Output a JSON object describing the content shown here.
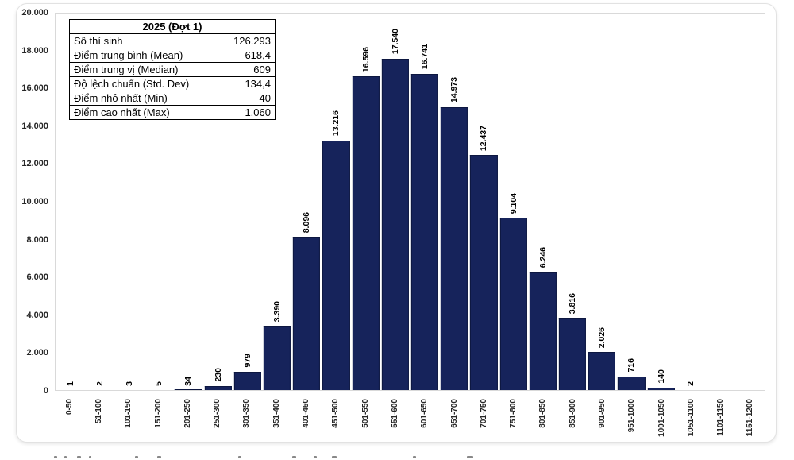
{
  "stats_table": {
    "title": "2025 (Đợt 1)",
    "rows": [
      {
        "label": "Số thí sinh",
        "value": "126.293"
      },
      {
        "label": "Điểm trung bình (Mean)",
        "value": "618,4"
      },
      {
        "label": "Điểm trung vị (Median)",
        "value": "609"
      },
      {
        "label": "Độ lệch chuẩn (Std. Dev)",
        "value": "134,4"
      },
      {
        "label": "Điểm nhỏ nhất (Min)",
        "value": "40"
      },
      {
        "label": "Điểm cao nhất (Max)",
        "value": "1.060"
      }
    ]
  },
  "chart_data": {
    "type": "bar",
    "title": "",
    "xlabel": "",
    "ylabel": "",
    "categories": [
      "0-50",
      "51-100",
      "101-150",
      "151-200",
      "201-250",
      "251-300",
      "301-350",
      "351-400",
      "401-450",
      "451-500",
      "501-550",
      "551-600",
      "601-650",
      "651-700",
      "701-750",
      "751-800",
      "801-850",
      "851-900",
      "901-950",
      "951-1000",
      "1001-1050",
      "1051-1100",
      "1101-1150",
      "1151-1200"
    ],
    "values": [
      1,
      2,
      3,
      5,
      34,
      230,
      979,
      3390,
      8096,
      13216,
      16596,
      17540,
      16741,
      14973,
      12437,
      9104,
      6246,
      3816,
      2026,
      716,
      140,
      2,
      0,
      0
    ],
    "value_labels": [
      "1",
      "2",
      "3",
      "5",
      "34",
      "230",
      "979",
      "3.390",
      "8.096",
      "13.216",
      "16.596",
      "17.540",
      "16.741",
      "14.973",
      "12.437",
      "9.104",
      "6.246",
      "3.816",
      "2.026",
      "716",
      "140",
      "2",
      "",
      ""
    ],
    "ylim": [
      0,
      20000
    ],
    "y_ticks": [
      0,
      2000,
      4000,
      6000,
      8000,
      10000,
      12000,
      14000,
      16000,
      18000,
      20000
    ],
    "y_tick_labels": [
      "0",
      "2.000",
      "4.000",
      "6.000",
      "8.000",
      "10.000",
      "12.000",
      "14.000",
      "16.000",
      "18.000",
      "20.000"
    ],
    "grid": false,
    "legend": false,
    "bar_color": "#16235b",
    "bar_border_color": "#0d1740",
    "plot_border_color": "#d9d9d9"
  }
}
